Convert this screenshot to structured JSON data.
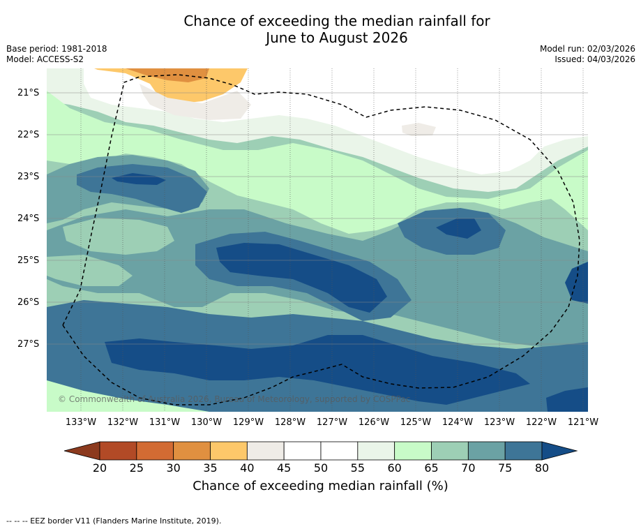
{
  "title_line1": "Chance of exceeding the median rainfall for",
  "title_line2": "June to August 2026",
  "base_period": "Base period: 1981-2018",
  "model": "Model: ACCESS-S2",
  "model_run": "Model run: 02/03/2026",
  "issued": "Issued: 04/03/2026",
  "copyright": "© Commonwealth of Australia 2026, Bureau of Meteorology, supported by COSPPac",
  "lat_labels": [
    "21°S",
    "22°S",
    "23°S",
    "24°S",
    "25°S",
    "26°S",
    "27°S"
  ],
  "lon_labels": [
    "133°W",
    "132°W",
    "131°W",
    "130°W",
    "129°W",
    "128°W",
    "127°W",
    "126°W",
    "125°W",
    "124°W",
    "123°W",
    "122°W",
    "121°W"
  ],
  "colorbar": {
    "ticks": [
      "20",
      "25",
      "30",
      "35",
      "40",
      "45",
      "50",
      "55",
      "60",
      "65",
      "70",
      "75",
      "80"
    ],
    "colors": [
      "#8c3a1e",
      "#b24a26",
      "#d26b33",
      "#e09040",
      "#fdc86a",
      "#efece7",
      "#ffffff",
      "#ffffff",
      "#eaf5e9",
      "#c8fbc8",
      "#9dcfb5",
      "#6ba2a4",
      "#3e7597",
      "#154d87"
    ],
    "title": "Chance of exceeding median rainfall (%)"
  },
  "footer": "--  --  -- EEZ border V11 (Flanders Marine Institute, 2019)."
}
